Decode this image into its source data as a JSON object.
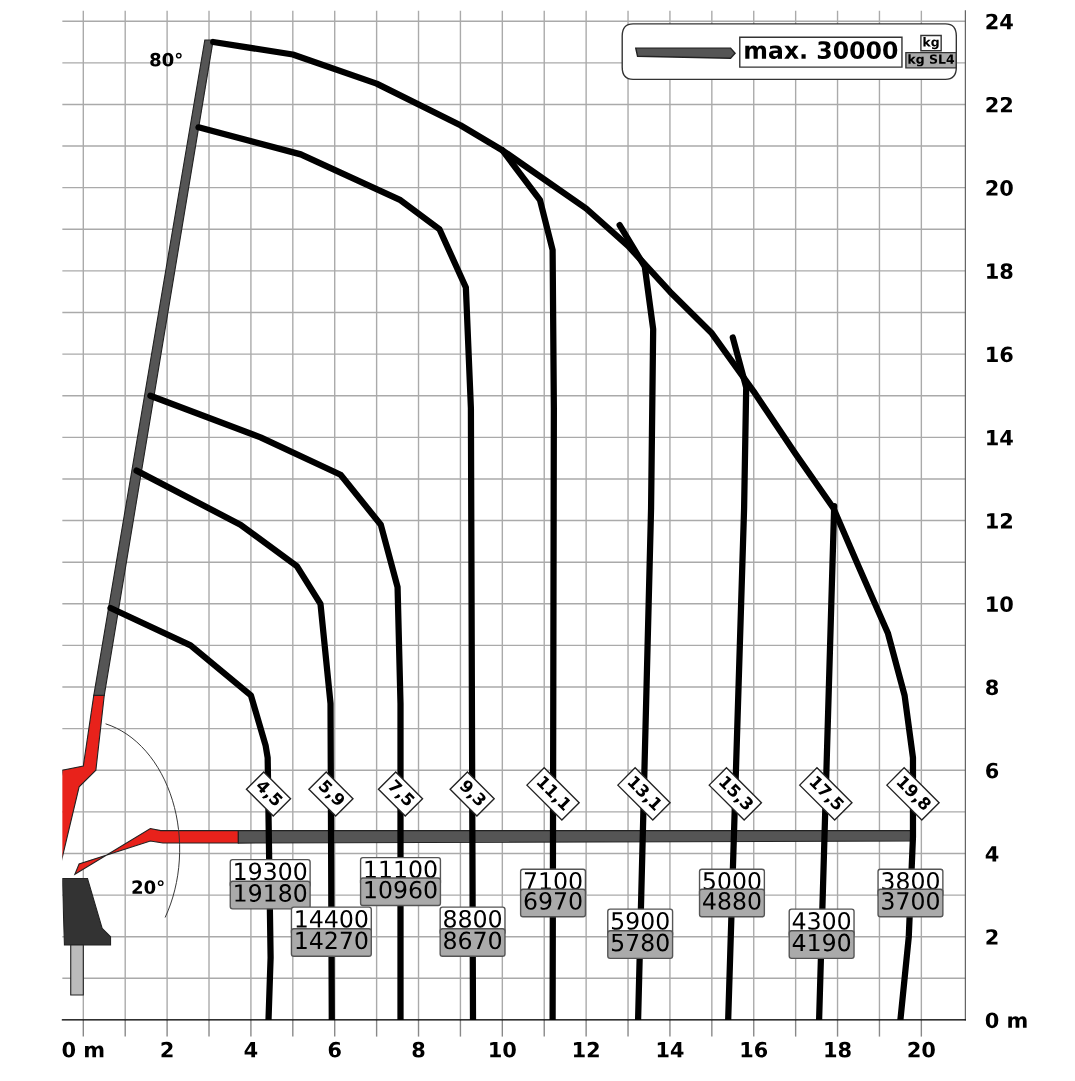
{
  "chart_data": {
    "type": "line",
    "xlim": [
      -0.5,
      21.05
    ],
    "ylim": [
      0,
      24.25
    ],
    "xticks": [
      {
        "value": 0,
        "label": "0 m"
      },
      2,
      4,
      6,
      8,
      10,
      12,
      14,
      16,
      18,
      20
    ],
    "yticks": [
      {
        "value": 0,
        "label": "0 m"
      },
      2,
      4,
      6,
      8,
      10,
      12,
      14,
      16,
      18,
      20,
      22,
      24
    ],
    "grid": true,
    "marker": "none",
    "line_style": "solid",
    "series": [
      {
        "color": "#000000",
        "x": [
          3.1,
          5.0,
          7.0,
          9.0,
          10.0,
          11.0,
          12.0,
          13.0,
          14.0,
          15.0,
          16.0,
          17.0,
          17.9,
          18.5,
          19.2,
          19.6,
          19.8,
          19.8,
          19.7,
          19.5
        ],
        "values": [
          23.5,
          23.2,
          22.5,
          21.5,
          20.9,
          20.2,
          19.5,
          18.6,
          17.5,
          16.5,
          15.1,
          13.6,
          12.3,
          10.9,
          9.3,
          7.8,
          6.3,
          4.4,
          2.0,
          0
        ]
      },
      {
        "color": "#000000",
        "x": [
          0.65,
          2.56,
          4.0,
          4.35,
          4.4,
          4.47,
          4.42
        ],
        "values": [
          9.9,
          9.0,
          7.8,
          6.6,
          6.3,
          1.5,
          0
        ]
      },
      {
        "color": "#000000",
        "x": [
          1.27,
          3.75,
          5.1,
          5.66,
          5.9,
          5.93
        ],
        "values": [
          13.2,
          11.9,
          10.9,
          10.0,
          7.6,
          0
        ]
      },
      {
        "color": "#000000",
        "x": [
          1.6,
          4.23,
          6.14,
          7.1,
          7.5,
          7.57,
          7.57
        ],
        "values": [
          15.0,
          14.0,
          13.1,
          11.9,
          10.4,
          7.6,
          0
        ]
      },
      {
        "color": "#000000",
        "x": [
          2.75,
          5.19,
          7.57,
          8.5,
          9.13,
          9.25,
          9.3
        ],
        "values": [
          21.45,
          20.8,
          19.7,
          19.0,
          17.6,
          14.7,
          0
        ]
      },
      {
        "color": "#000000",
        "x": [
          10.0,
          10.9,
          11.2,
          11.23,
          11.2
        ],
        "values": [
          20.9,
          19.7,
          18.5,
          14.7,
          0
        ]
      },
      {
        "color": "#000000",
        "x": [
          12.8,
          13.4,
          13.6,
          13.55,
          13.24
        ],
        "values": [
          19.1,
          18.1,
          16.6,
          12.3,
          0
        ]
      },
      {
        "color": "#000000",
        "x": [
          15.5,
          15.82,
          15.77,
          15.39
        ],
        "values": [
          16.4,
          15.2,
          12.3,
          0
        ]
      },
      {
        "color": "#000000",
        "x": [
          17.92,
          17.85,
          17.56
        ],
        "values": [
          12.35,
          9.96,
          0
        ]
      }
    ],
    "annotations": [
      "max. 30000",
      "kg",
      "kg SL4",
      "80°",
      "20°",
      {
        "text": "4,5",
        "x": 4.42,
        "y": 5.43
      },
      {
        "text": "5,9",
        "x": 5.91,
        "y": 5.43
      },
      {
        "text": "7,5",
        "x": 7.57,
        "y": 5.43
      },
      {
        "text": "9,3",
        "x": 9.28,
        "y": 5.43
      },
      {
        "text": "11,1",
        "x": 11.21,
        "y": 5.43
      },
      {
        "text": "13,1",
        "x": 13.38,
        "y": 5.43
      },
      {
        "text": "15,3",
        "x": 15.56,
        "y": 5.43
      },
      {
        "text": "17,5",
        "x": 17.72,
        "y": 5.43
      },
      {
        "text": "19,8",
        "x": 19.8,
        "y": 5.43
      },
      {
        "text": "19300",
        "x": 4.46,
        "y": 3.52
      },
      {
        "text": "19180",
        "x": 4.46,
        "y": 3.0
      },
      {
        "text": "14400",
        "x": 5.92,
        "y": 2.38
      },
      {
        "text": "14270",
        "x": 5.92,
        "y": 1.86
      },
      {
        "text": "11100",
        "x": 7.57,
        "y": 3.57
      },
      {
        "text": "10960",
        "x": 7.57,
        "y": 3.08
      },
      {
        "text": "8800",
        "x": 9.29,
        "y": 2.38
      },
      {
        "text": "8670",
        "x": 9.29,
        "y": 1.86
      },
      {
        "text": "7100",
        "x": 11.21,
        "y": 3.29
      },
      {
        "text": "6970",
        "x": 11.21,
        "y": 2.81
      },
      {
        "text": "5900",
        "x": 13.29,
        "y": 2.33
      },
      {
        "text": "5780",
        "x": 13.29,
        "y": 1.81
      },
      {
        "text": "5000",
        "x": 15.48,
        "y": 3.29
      },
      {
        "text": "4880",
        "x": 15.48,
        "y": 2.81
      },
      {
        "text": "4300",
        "x": 17.62,
        "y": 2.33
      },
      {
        "text": "4190",
        "x": 17.62,
        "y": 1.81
      },
      {
        "text": "3800",
        "x": 19.74,
        "y": 3.29
      },
      {
        "text": "3700",
        "x": 19.74,
        "y": 2.81
      }
    ]
  }
}
